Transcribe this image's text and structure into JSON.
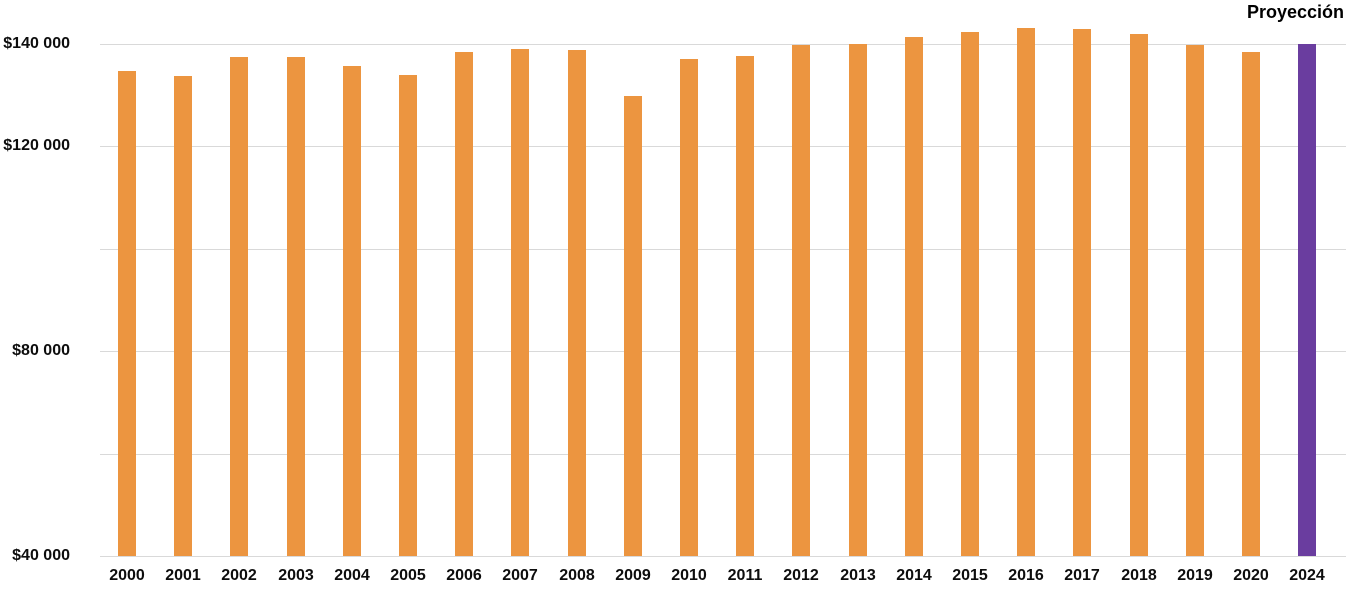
{
  "annotation": {
    "label": "Proyección"
  },
  "colors": {
    "bar": "#EC9540",
    "projection_bar": "#6A3D9F",
    "gridline": "#d9d9d9",
    "text": "#0d0d0d"
  },
  "chart_data": {
    "type": "bar",
    "title": "",
    "xlabel": "",
    "ylabel": "",
    "categories": [
      "2000",
      "2001",
      "2002",
      "2003",
      "2004",
      "2005",
      "2006",
      "2007",
      "2008",
      "2009",
      "2010",
      "2011",
      "2012",
      "2013",
      "2014",
      "2015",
      "2016",
      "2017",
      "2018",
      "2019",
      "2020",
      "2024"
    ],
    "values": [
      134700,
      133800,
      137400,
      137500,
      135800,
      133900,
      138400,
      139000,
      138800,
      129900,
      137000,
      137600,
      139900,
      140000,
      141300,
      142400,
      143200,
      143000,
      142000,
      139900,
      138400,
      140000
    ],
    "projection_category": "2024",
    "annotation": "Proyección",
    "grid": true,
    "legend_position": "none",
    "y_axis": {
      "min": 40000,
      "gridline_max": 140000,
      "gridline_step": 20000,
      "labeled_ticks": [
        {
          "value": 140000,
          "label": "$140 000"
        },
        {
          "value": 120000,
          "label": "$120 000"
        },
        {
          "value": 80000,
          "label": "$80 000"
        },
        {
          "value": 40000,
          "label": "$40 000"
        }
      ]
    }
  }
}
